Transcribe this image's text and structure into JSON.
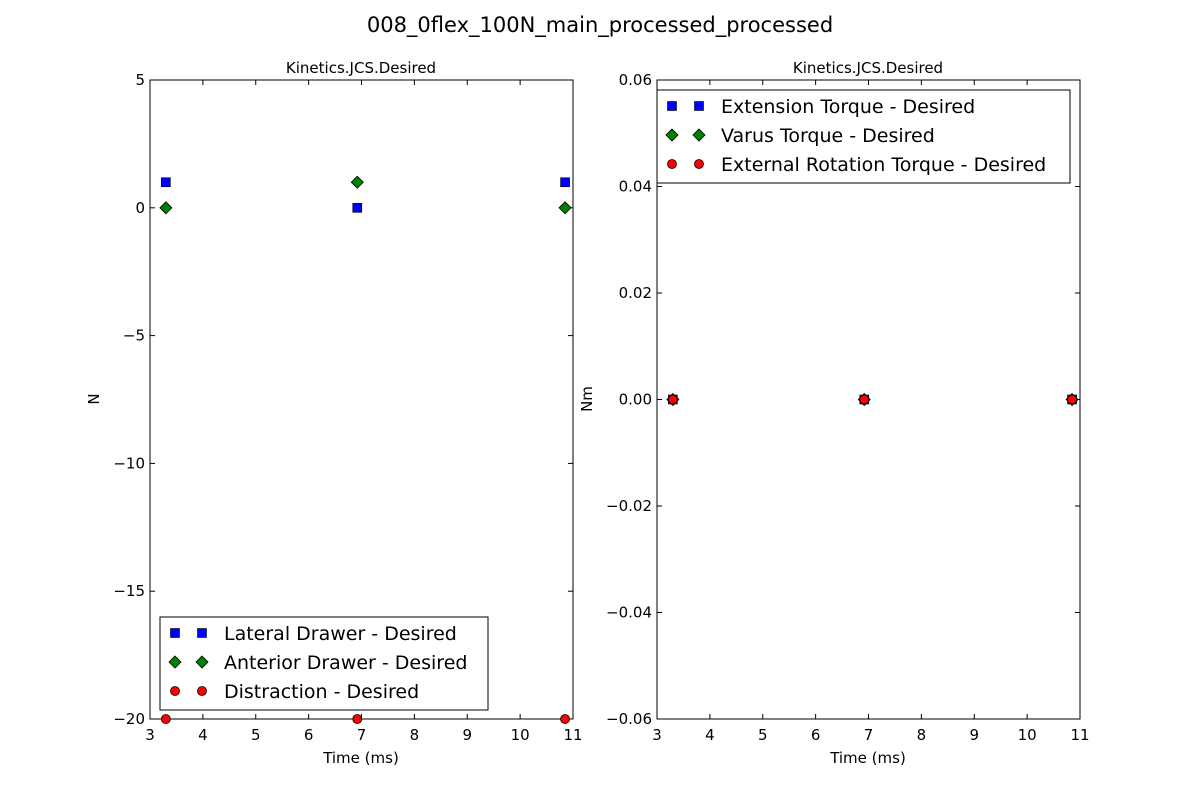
{
  "figure_title": "008_0flex_100N_main_processed_processed",
  "chart_data": [
    {
      "type": "scatter",
      "title": "Kinetics.JCS.Desired",
      "xlabel": "Time (ms)",
      "ylabel": "N",
      "xlim": [
        3,
        11
      ],
      "ylim": [
        -20,
        5
      ],
      "xticks": [
        "3",
        "4",
        "5",
        "6",
        "7",
        "8",
        "9",
        "10",
        "11"
      ],
      "yticks": [
        "5",
        "0",
        "−5",
        "−10",
        "−15",
        "−20"
      ],
      "grid": false,
      "legend_position": "lower-left",
      "series": [
        {
          "name": "Lateral Drawer - Desired",
          "marker": "square",
          "color": "#0000ff",
          "x": [
            3.3,
            6.92,
            10.85
          ],
          "y": [
            1,
            0,
            1
          ]
        },
        {
          "name": "Anterior Drawer - Desired",
          "marker": "diamond",
          "color": "#008000",
          "x": [
            3.3,
            6.92,
            10.85
          ],
          "y": [
            0,
            1,
            0
          ]
        },
        {
          "name": "Distraction - Desired",
          "marker": "circle",
          "color": "#ff0000",
          "x": [
            3.3,
            6.92,
            10.85
          ],
          "y": [
            -20,
            -20,
            -20
          ]
        }
      ]
    },
    {
      "type": "scatter",
      "title": "Kinetics.JCS.Desired",
      "xlabel": "Time (ms)",
      "ylabel": "Nm",
      "xlim": [
        3,
        11
      ],
      "ylim": [
        -0.06,
        0.06
      ],
      "xticks": [
        "3",
        "4",
        "5",
        "6",
        "7",
        "8",
        "9",
        "10",
        "11"
      ],
      "yticks": [
        "0.06",
        "0.04",
        "0.02",
        "0.00",
        "−0.02",
        "−0.04",
        "−0.06"
      ],
      "grid": false,
      "legend_position": "top",
      "series": [
        {
          "name": "Extension Torque - Desired",
          "marker": "square",
          "color": "#0000ff",
          "x": [
            3.3,
            6.92,
            10.85
          ],
          "y": [
            0,
            0,
            0
          ]
        },
        {
          "name": "Varus Torque - Desired",
          "marker": "diamond",
          "color": "#008000",
          "x": [
            3.3,
            6.92,
            10.85
          ],
          "y": [
            0,
            0,
            0
          ]
        },
        {
          "name": "External Rotation Torque - Desired",
          "marker": "circle",
          "color": "#ff0000",
          "x": [
            3.3,
            6.92,
            10.85
          ],
          "y": [
            0,
            0,
            0
          ]
        }
      ]
    }
  ]
}
